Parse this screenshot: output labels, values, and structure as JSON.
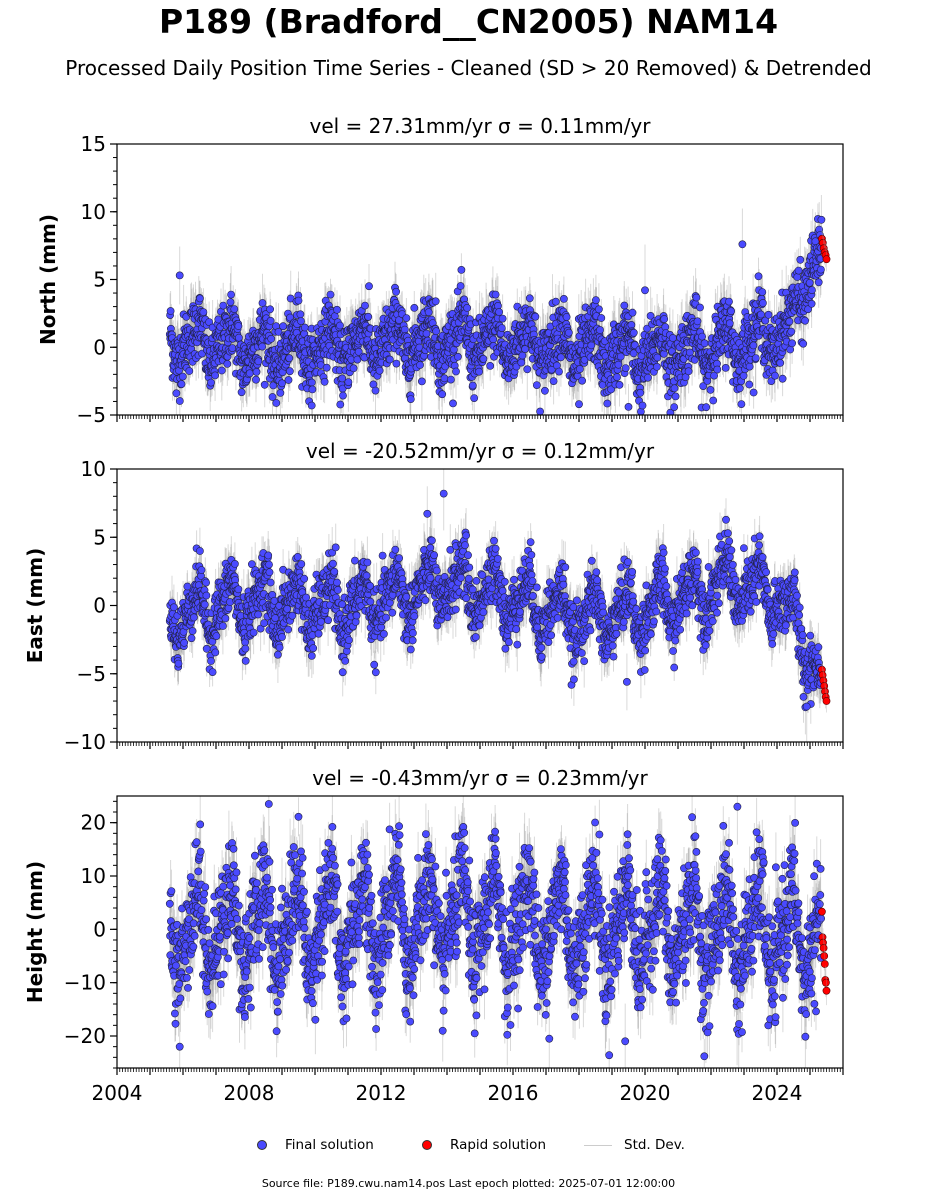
{
  "title": "P189 (Bradford__CN2005) NAM14",
  "subtitle": "Processed Daily Position Time Series - Cleaned (SD > 20 Removed) & Detrended",
  "legend": {
    "final": "Final solution",
    "rapid": "Rapid solution",
    "std": "Std. Dev."
  },
  "footer": "Source file: P189.cwu.nam14.pos  Last epoch plotted: 2025-07-01 12:00:00",
  "colors": {
    "final": "#4a4aff",
    "rapid": "#ff0000",
    "edge": "#222244",
    "err": "#9a9a9a"
  },
  "chart_data": [
    {
      "type": "scatter",
      "title": "vel = 27.31mm/yr   σ = 0.11mm/yr",
      "ylabel": "North (mm)",
      "xlim": [
        2004,
        2026
      ],
      "ylim": [
        -5,
        15
      ],
      "yticks": [
        -5,
        0,
        5,
        10,
        15
      ],
      "xticks": [
        "2004",
        "2008",
        "2012",
        "2016",
        "2020",
        "2024"
      ],
      "final_range": [
        2005.6,
        2025.35
      ],
      "rapid_range": [
        2025.36,
        2025.5
      ],
      "annual_amplitude": 1.3,
      "noise": 1.2,
      "sigma": 1.5,
      "baseline": [
        [
          2005.6,
          0.6
        ],
        [
          2009.0,
          -0.2
        ],
        [
          2013.0,
          0.6
        ],
        [
          2016.5,
          0.4
        ],
        [
          2020.0,
          -0.6
        ],
        [
          2022.5,
          0.2
        ],
        [
          2024.4,
          1.2
        ],
        [
          2024.9,
          5.5
        ],
        [
          2025.5,
          7.2
        ]
      ],
      "outliers": [
        [
          2005.9,
          5.3
        ],
        [
          2005.8,
          -3.4
        ],
        [
          2022.95,
          7.6
        ],
        [
          2019.5,
          -4.4
        ],
        [
          2009.9,
          -4.3
        ],
        [
          2018.0,
          -4.2
        ],
        [
          2020.0,
          4.2
        ]
      ],
      "rapid_values": [
        8.0,
        7.7,
        7.3,
        7.0,
        6.8,
        6.5
      ]
    },
    {
      "type": "scatter",
      "title": "vel = -20.52mm/yr   σ = 0.12mm/yr",
      "ylabel": "East (mm)",
      "xlim": [
        2004,
        2026
      ],
      "ylim": [
        -10,
        10
      ],
      "yticks": [
        -10,
        -5,
        0,
        5,
        10
      ],
      "xticks": [
        "2004",
        "2008",
        "2012",
        "2016",
        "2020",
        "2024"
      ],
      "final_range": [
        2005.6,
        2025.35
      ],
      "rapid_range": [
        2025.36,
        2025.5
      ],
      "annual_amplitude": 1.6,
      "noise": 1.1,
      "sigma": 1.4,
      "baseline": [
        [
          2005.6,
          -0.8
        ],
        [
          2008.0,
          0.3
        ],
        [
          2011.0,
          -0.2
        ],
        [
          2014.0,
          1.6
        ],
        [
          2016.0,
          0.6
        ],
        [
          2018.0,
          -1.0
        ],
        [
          2020.0,
          -0.4
        ],
        [
          2022.5,
          1.8
        ],
        [
          2024.0,
          0.6
        ],
        [
          2024.6,
          -1.5
        ],
        [
          2025.2,
          -4.5
        ],
        [
          2025.5,
          -6.0
        ]
      ],
      "outliers": [
        [
          2013.9,
          8.2
        ],
        [
          2019.45,
          -5.6
        ],
        [
          2024.9,
          -7.4
        ]
      ],
      "rapid_values": [
        -4.7,
        -5.1,
        -5.5,
        -5.9,
        -6.3,
        -6.7,
        -7.0
      ]
    },
    {
      "type": "scatter",
      "title": "vel = -0.43mm/yr   σ = 0.23mm/yr",
      "ylabel": "Height (mm)",
      "xlim": [
        2004,
        2026
      ],
      "ylim": [
        -26,
        25
      ],
      "yticks": [
        -20,
        -10,
        0,
        10,
        20
      ],
      "xticks": [
        "2004",
        "2008",
        "2012",
        "2016",
        "2020",
        "2024"
      ],
      "final_range": [
        2005.6,
        2025.35
      ],
      "rapid_range": [
        2025.36,
        2025.5
      ],
      "annual_amplitude": 7.5,
      "noise": 5.0,
      "sigma": 4.5,
      "baseline": [
        [
          2005.6,
          0.0
        ],
        [
          2010.0,
          1.0
        ],
        [
          2015.0,
          1.5
        ],
        [
          2020.0,
          0.5
        ],
        [
          2025.5,
          -1.5
        ]
      ],
      "outliers": [
        [
          2008.6,
          23.5
        ],
        [
          2022.8,
          23.0
        ],
        [
          2005.9,
          -22.0
        ],
        [
          2019.4,
          -21.0
        ],
        [
          2017.1,
          -20.5
        ]
      ],
      "rapid_values": [
        3.3,
        -1.5,
        -2.5,
        -3.5,
        -5.0,
        -6.5,
        -9.5,
        -10.0,
        -11.5
      ]
    }
  ]
}
